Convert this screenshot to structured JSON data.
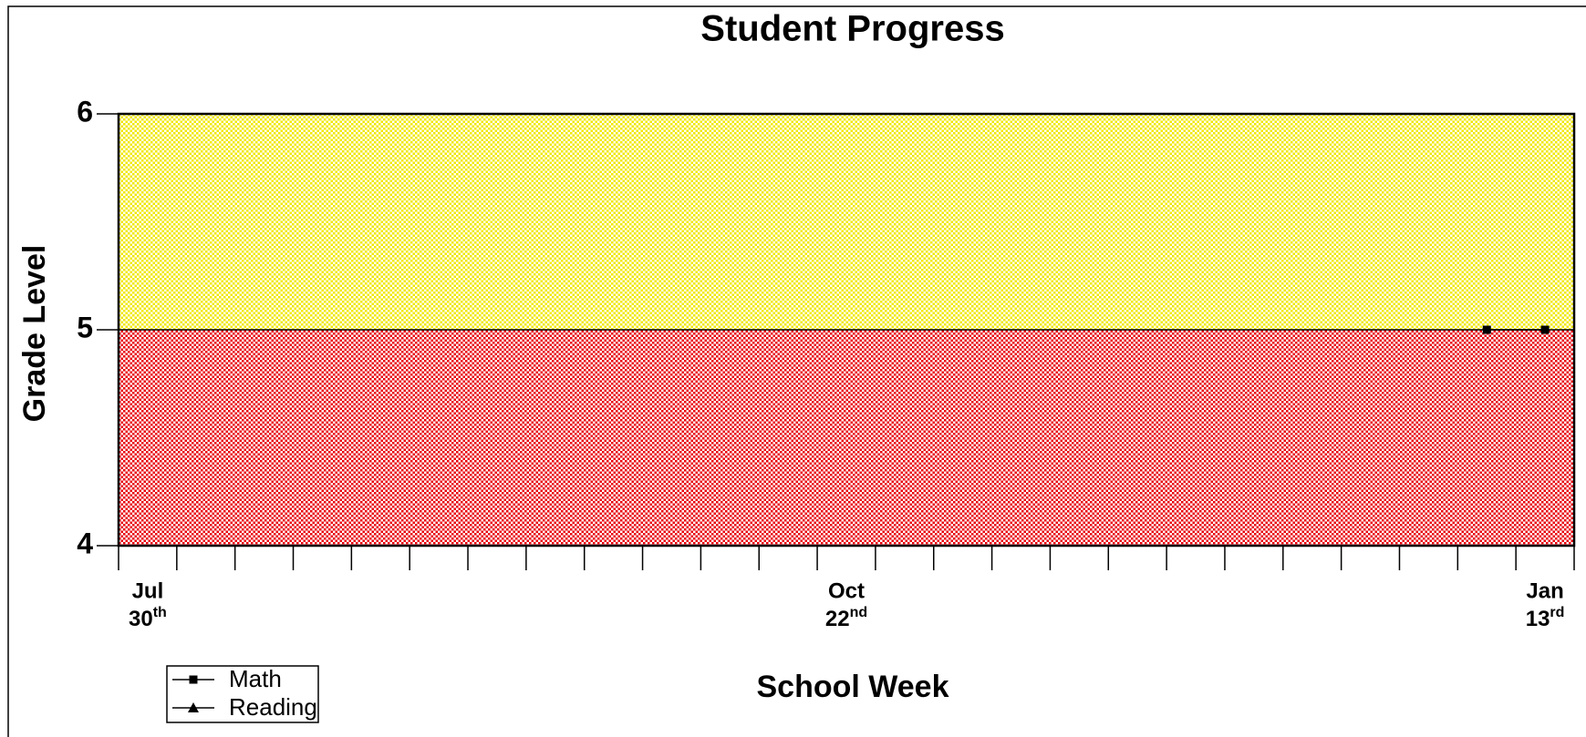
{
  "chart_data": {
    "type": "line",
    "title": "Student Progress",
    "xlabel": "School Week",
    "ylabel": "Grade Level",
    "categories": [
      {
        "month": "Jul",
        "day": "30",
        "suffix": "th"
      },
      null,
      null,
      null,
      null,
      null,
      null,
      null,
      null,
      null,
      null,
      null,
      {
        "month": "Oct",
        "day": "22",
        "suffix": "nd"
      },
      null,
      null,
      null,
      null,
      null,
      null,
      null,
      null,
      null,
      null,
      null,
      {
        "month": "Jan",
        "day": "13",
        "suffix": "rd"
      }
    ],
    "series": [
      {
        "name": "Math",
        "color": "#000000",
        "marker": "square",
        "values": [
          null,
          null,
          null,
          null,
          null,
          null,
          null,
          null,
          null,
          null,
          null,
          null,
          null,
          null,
          null,
          null,
          null,
          null,
          null,
          null,
          null,
          null,
          null,
          5,
          5
        ]
      },
      {
        "name": "Reading",
        "color": "#000000",
        "marker": "triangle",
        "values": [
          null,
          null,
          null,
          null,
          null,
          null,
          null,
          null,
          null,
          null,
          null,
          null,
          null,
          null,
          null,
          null,
          null,
          null,
          null,
          null,
          null,
          null,
          null,
          null,
          null
        ]
      }
    ],
    "bands": [
      {
        "from": 4,
        "to": 5,
        "color": "#e8000b"
      },
      {
        "from": 5,
        "to": 6,
        "color": "#f0e800"
      }
    ],
    "ylim": [
      4,
      6
    ],
    "yticks": [
      4,
      5,
      6
    ],
    "legend": "lower left"
  }
}
